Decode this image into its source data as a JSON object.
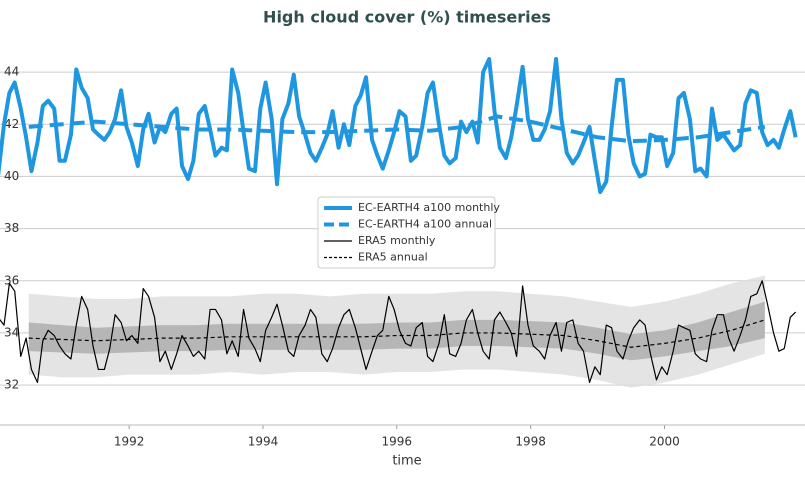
{
  "chart_data": {
    "type": "line",
    "title": "High cloud cover (%) timeseries",
    "xlabel": "time",
    "xlim": [
      1990.07,
      2002.1
    ],
    "xticks": [
      1992,
      1994,
      1996,
      1998,
      2000
    ],
    "ylim": [
      30.47,
      45.23
    ],
    "yticks": [
      32,
      34,
      36,
      38,
      40,
      42,
      44
    ],
    "grid": true,
    "legend": "center",
    "x": [
      1990.04,
      1990.13,
      1990.21,
      1990.29,
      1990.38,
      1990.46,
      1990.54,
      1990.63,
      1990.71,
      1990.79,
      1990.88,
      1990.96,
      1991.04,
      1991.13,
      1991.21,
      1991.29,
      1991.38,
      1991.46,
      1991.54,
      1991.63,
      1991.71,
      1991.79,
      1991.88,
      1991.96,
      1992.04,
      1992.13,
      1992.21,
      1992.29,
      1992.38,
      1992.46,
      1992.54,
      1992.63,
      1992.71,
      1992.79,
      1992.88,
      1992.96,
      1993.04,
      1993.13,
      1993.21,
      1993.29,
      1993.38,
      1993.46,
      1993.54,
      1993.63,
      1993.71,
      1993.79,
      1993.88,
      1993.96,
      1994.04,
      1994.13,
      1994.21,
      1994.29,
      1994.38,
      1994.46,
      1994.54,
      1994.63,
      1994.71,
      1994.79,
      1994.88,
      1994.96,
      1995.04,
      1995.13,
      1995.21,
      1995.29,
      1995.38,
      1995.46,
      1995.54,
      1995.63,
      1995.71,
      1995.79,
      1995.88,
      1995.96,
      1996.04,
      1996.13,
      1996.21,
      1996.29,
      1996.38,
      1996.46,
      1996.54,
      1996.63,
      1996.71,
      1996.79,
      1996.88,
      1996.96,
      1997.04,
      1997.13,
      1997.21,
      1997.29,
      1997.38,
      1997.46,
      1997.54,
      1997.63,
      1997.71,
      1997.79,
      1997.88,
      1997.96,
      1998.04,
      1998.13,
      1998.21,
      1998.29,
      1998.38,
      1998.46,
      1998.54,
      1998.63,
      1998.71,
      1998.79,
      1998.88,
      1998.96,
      1999.04,
      1999.13,
      1999.21,
      1999.29,
      1999.38,
      1999.46,
      1999.54,
      1999.63,
      1999.71,
      1999.79,
      1999.88,
      1999.96,
      2000.04,
      2000.13,
      2000.21,
      2000.29,
      2000.38,
      2000.46,
      2000.54,
      2000.63,
      2000.71,
      2000.79,
      2000.88,
      2000.96,
      2001.04,
      2001.13,
      2001.21,
      2001.29,
      2001.38,
      2001.46,
      2001.54,
      2001.63,
      2001.71,
      2001.79,
      2001.88,
      2001.96
    ],
    "bands": [
      {
        "color": "#dddddd",
        "x": [
          1990.5,
          1991,
          1991.5,
          1992,
          1992.5,
          1993,
          1993.5,
          1994,
          1994.5,
          1995,
          1995.5,
          1996,
          1996.5,
          1997,
          1997.5,
          1998,
          1998.5,
          1999,
          1999.5,
          2000,
          2000.5,
          2001,
          2001.5
        ],
        "lower": [
          32.4,
          32.3,
          32.3,
          32.4,
          32.4,
          32.4,
          32.5,
          32.4,
          32.5,
          32.5,
          32.4,
          32.5,
          32.5,
          32.6,
          32.6,
          32.5,
          32.4,
          32.2,
          31.9,
          32.1,
          32.4,
          32.8,
          33.2
        ],
        "upper": [
          35.5,
          35.4,
          35.3,
          35.3,
          35.4,
          35.4,
          35.4,
          35.5,
          35.5,
          35.4,
          35.5,
          35.5,
          35.5,
          35.6,
          35.6,
          35.5,
          35.4,
          35.2,
          35.0,
          35.2,
          35.5,
          35.9,
          36.2
        ]
      },
      {
        "color": "#aaaaaa",
        "x": [
          1990.5,
          1991,
          1991.5,
          1992,
          1992.5,
          1993,
          1993.5,
          1994,
          1994.5,
          1995,
          1995.5,
          1996,
          1996.5,
          1997,
          1997.5,
          1998,
          1998.5,
          1999,
          1999.5,
          2000,
          2000.5,
          2001,
          2001.5
        ],
        "lower": [
          33.3,
          33.25,
          33.2,
          33.25,
          33.3,
          33.3,
          33.35,
          33.35,
          33.35,
          33.35,
          33.35,
          33.4,
          33.4,
          33.5,
          33.5,
          33.45,
          33.4,
          33.2,
          32.95,
          33.1,
          33.3,
          33.5,
          33.8
        ],
        "upper": [
          34.4,
          34.3,
          34.2,
          34.25,
          34.3,
          34.3,
          34.35,
          34.35,
          34.35,
          34.35,
          34.35,
          34.4,
          34.4,
          34.5,
          34.5,
          34.45,
          34.4,
          34.2,
          33.95,
          34.1,
          34.4,
          34.8,
          35.2
        ]
      }
    ],
    "series": [
      {
        "name": "EC-EARTH4 a100 monthly",
        "color": "#1f97e0",
        "width": 4,
        "dash": "none",
        "values": [
          40.0,
          42.0,
          43.2,
          43.6,
          42.6,
          41.5,
          40.2,
          41.3,
          42.7,
          42.9,
          42.6,
          40.6,
          40.6,
          41.6,
          44.1,
          43.4,
          43.0,
          41.8,
          41.6,
          41.4,
          41.7,
          42.2,
          43.3,
          41.9,
          41.3,
          40.4,
          41.8,
          42.4,
          41.3,
          41.9,
          41.7,
          42.4,
          42.6,
          40.4,
          39.9,
          40.6,
          42.4,
          42.7,
          41.8,
          40.8,
          41.1,
          41.0,
          44.1,
          43.2,
          41.7,
          40.3,
          40.2,
          42.6,
          43.6,
          42.2,
          39.7,
          42.2,
          42.8,
          43.9,
          42.3,
          41.6,
          40.9,
          40.6,
          41.1,
          41.6,
          42.5,
          41.1,
          42.0,
          41.2,
          42.7,
          43.1,
          43.8,
          41.4,
          40.8,
          40.3,
          41.0,
          41.7,
          42.5,
          42.3,
          40.6,
          40.8,
          41.9,
          43.2,
          43.6,
          42.0,
          40.8,
          40.5,
          40.7,
          42.1,
          41.7,
          42.1,
          41.3,
          44.0,
          44.5,
          42.5,
          41.1,
          40.7,
          41.5,
          42.7,
          44.2,
          42.2,
          41.4,
          41.4,
          41.8,
          42.5,
          44.5,
          42.2,
          40.9,
          40.5,
          40.8,
          41.3,
          41.9,
          40.6,
          39.4,
          39.8,
          41.9,
          43.7,
          43.7,
          41.6,
          40.5,
          40.0,
          40.1,
          41.6,
          41.5,
          41.5,
          40.4,
          40.9,
          43.0,
          43.2,
          42.2,
          40.2,
          40.3,
          40.0,
          42.6,
          41.4,
          41.6,
          41.3,
          41.0,
          41.2,
          42.8,
          43.3,
          43.2,
          41.7,
          41.2,
          41.4,
          41.1,
          41.8,
          42.5,
          41.5
        ]
      },
      {
        "name": "EC-EARTH4 a100 annual",
        "color": "#1f97e0",
        "width": 4,
        "dash": "14 7",
        "x": [
          1990.5,
          1991,
          1991.5,
          1992,
          1992.5,
          1993,
          1993.5,
          1994,
          1994.5,
          1995,
          1995.5,
          1996,
          1996.5,
          1997,
          1997.5,
          1998,
          1998.5,
          1999,
          1999.5,
          2000,
          2000.5,
          2001,
          2001.5
        ],
        "values": [
          41.9,
          42.0,
          42.1,
          42.0,
          41.9,
          41.8,
          41.8,
          41.75,
          41.7,
          41.7,
          41.75,
          41.8,
          41.75,
          41.9,
          42.3,
          42.1,
          41.8,
          41.5,
          41.35,
          41.4,
          41.5,
          41.7,
          41.9
        ]
      },
      {
        "name": "ERA5 monthly",
        "color": "#000000",
        "width": 1.2,
        "dash": "none",
        "values": [
          34.6,
          34.3,
          35.9,
          35.6,
          33.1,
          33.8,
          32.6,
          32.1,
          33.7,
          34.1,
          33.9,
          33.5,
          33.2,
          33.0,
          34.3,
          35.4,
          34.9,
          33.5,
          32.6,
          32.6,
          33.4,
          34.7,
          34.4,
          33.7,
          33.9,
          33.6,
          35.7,
          35.4,
          34.6,
          32.9,
          33.3,
          32.6,
          33.2,
          33.9,
          33.5,
          33.1,
          33.3,
          33.0,
          34.9,
          34.9,
          34.5,
          33.2,
          33.7,
          33.1,
          34.9,
          33.8,
          33.4,
          32.9,
          34.1,
          34.6,
          35.1,
          34.3,
          33.3,
          33.1,
          33.9,
          34.3,
          34.9,
          34.6,
          33.2,
          32.9,
          33.4,
          34.2,
          34.7,
          34.9,
          34.2,
          33.4,
          32.6,
          33.3,
          33.9,
          34.1,
          35.4,
          34.9,
          34.1,
          33.6,
          33.5,
          34.2,
          34.4,
          33.1,
          32.9,
          33.6,
          34.7,
          33.2,
          33.1,
          33.6,
          34.5,
          34.9,
          34.0,
          33.3,
          33.0,
          34.5,
          34.8,
          34.4,
          34.0,
          33.1,
          35.8,
          34.3,
          33.5,
          33.3,
          33.0,
          33.9,
          34.4,
          33.3,
          34.4,
          34.5,
          33.6,
          33.3,
          32.1,
          32.7,
          32.4,
          34.3,
          34.2,
          33.3,
          33.0,
          33.7,
          34.2,
          34.5,
          34.3,
          33.2,
          32.2,
          32.7,
          32.4,
          33.3,
          34.3,
          34.2,
          34.1,
          33.2,
          33.0,
          32.9,
          34.1,
          34.7,
          34.7,
          33.8,
          33.3,
          33.9,
          34.5,
          35.4,
          35.5,
          36.0,
          35.1,
          34.0,
          33.3,
          33.4,
          34.6,
          34.8
        ]
      },
      {
        "name": "ERA5 annual",
        "color": "#000000",
        "width": 1.2,
        "dash": "4 3",
        "x": [
          1990.5,
          1991,
          1991.5,
          1992,
          1992.5,
          1993,
          1993.5,
          1994,
          1994.5,
          1995,
          1995.5,
          1996,
          1996.5,
          1997,
          1997.5,
          1998,
          1998.5,
          1999,
          1999.5,
          2000,
          2000.5,
          2001,
          2001.5
        ],
        "values": [
          33.8,
          33.75,
          33.7,
          33.75,
          33.8,
          33.8,
          33.85,
          33.85,
          33.85,
          33.85,
          33.85,
          33.9,
          33.9,
          34.0,
          34.0,
          33.95,
          33.9,
          33.7,
          33.45,
          33.6,
          33.8,
          34.1,
          34.5
        ]
      }
    ]
  }
}
